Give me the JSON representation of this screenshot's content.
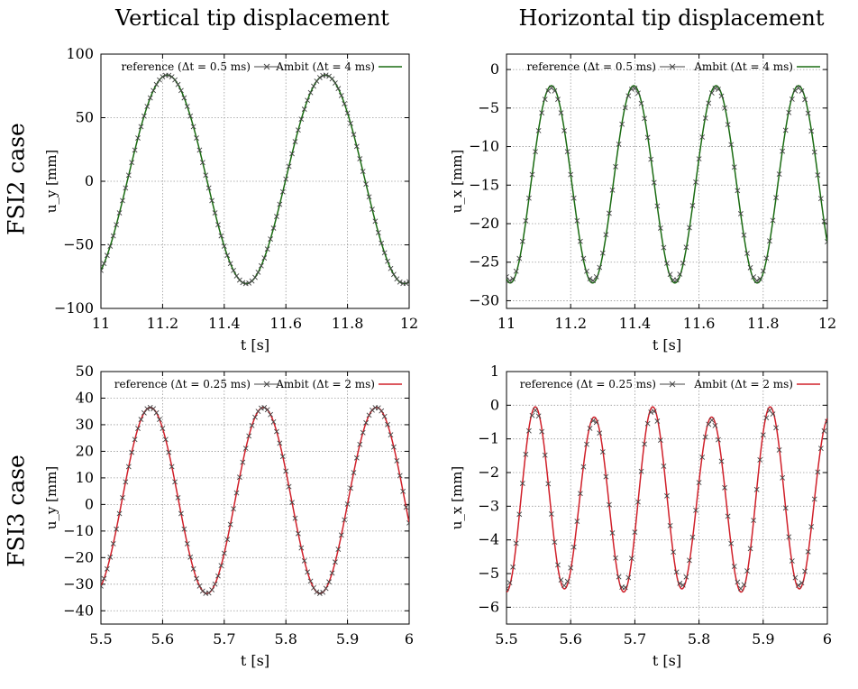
{
  "column_titles": [
    "Vertical tip displacement",
    "Horizontal tip displacement"
  ],
  "row_labels": [
    "FSI2 case",
    "FSI3 case"
  ],
  "colors": {
    "green": "#1a6b12",
    "red": "#d0202a",
    "reference": "#444444",
    "grid": "#9a9a9a"
  },
  "chart_data": [
    {
      "type": "line",
      "id": "fsi2-uy",
      "xlabel": "t [s]",
      "ylabel": "u_y [mm]",
      "xlim": [
        11,
        12
      ],
      "ylim": [
        -100,
        100
      ],
      "xticks": [
        11,
        11.2,
        11.4,
        11.6,
        11.8,
        12
      ],
      "yticks": [
        -100,
        -50,
        0,
        50,
        100
      ],
      "grid": true,
      "legend": "top",
      "model": {
        "mean": 1.5,
        "amp": 82,
        "period": 0.513,
        "phase_t": 11.215,
        "ref_shift": 0.0
      },
      "series": [
        {
          "name": "reference (Δt = 0.5 ms)",
          "style": "markers-x",
          "color": "reference"
        },
        {
          "name": "Ambit (Δt = 4 ms)",
          "style": "line",
          "color": "green"
        }
      ]
    },
    {
      "type": "line",
      "id": "fsi2-ux",
      "xlabel": "t [s]",
      "ylabel": "u_x [mm]",
      "xlim": [
        11,
        12
      ],
      "ylim": [
        -31,
        2
      ],
      "xticks": [
        11,
        11.2,
        11.4,
        11.6,
        11.8,
        12
      ],
      "yticks": [
        0,
        -5,
        -10,
        -15,
        -20,
        -25,
        -30
      ],
      "grid": true,
      "legend": "top",
      "model": {
        "mean": -14.9,
        "amp": 12.8,
        "period": 0.2566,
        "phase_t": 11.14,
        "ref_shift": 0.0,
        "ref_amp": 12.5
      },
      "series": [
        {
          "name": "reference (Δt = 0.5 ms)",
          "style": "markers-x",
          "color": "reference"
        },
        {
          "name": "Ambit (Δt = 4 ms)",
          "style": "line",
          "color": "green"
        }
      ]
    },
    {
      "type": "line",
      "id": "fsi3-uy",
      "xlabel": "t [s]",
      "ylabel": "u_y [mm]",
      "xlim": [
        5.5,
        6
      ],
      "ylim": [
        -45,
        50
      ],
      "xticks": [
        5.5,
        5.6,
        5.7,
        5.8,
        5.9,
        6
      ],
      "yticks": [
        -40,
        -30,
        -20,
        -10,
        0,
        10,
        20,
        30,
        40,
        50
      ],
      "grid": true,
      "legend": "top",
      "model": {
        "mean": 1.5,
        "amp": 35,
        "period": 0.1835,
        "phase_t": 5.58,
        "ref_shift": 0.0
      },
      "series": [
        {
          "name": "reference (Δt = 0.25 ms)",
          "style": "markers-x",
          "color": "reference"
        },
        {
          "name": "Ambit (Δt = 2 ms)",
          "style": "line",
          "color": "red"
        }
      ]
    },
    {
      "type": "line",
      "id": "fsi3-ux",
      "xlabel": "t [s]",
      "ylabel": "u_x [mm]",
      "xlim": [
        5.5,
        6
      ],
      "ylim": [
        -6.5,
        1
      ],
      "xticks": [
        5.5,
        5.6,
        5.7,
        5.8,
        5.9,
        6
      ],
      "yticks": [
        1,
        0,
        -1,
        -2,
        -3,
        -4,
        -5,
        -6
      ],
      "grid": true,
      "legend": "top",
      "model": {
        "mean": -2.85,
        "amp": 2.65,
        "period": 0.0915,
        "phase_t": 5.545,
        "ref_shift": 0.0,
        "ref_amp": 2.55,
        "beat": 0.12
      },
      "series": [
        {
          "name": "reference (Δt = 0.25 ms)",
          "style": "markers-x",
          "color": "reference"
        },
        {
          "name": "Ambit (Δt = 2 ms)",
          "style": "line",
          "color": "red"
        }
      ]
    }
  ]
}
